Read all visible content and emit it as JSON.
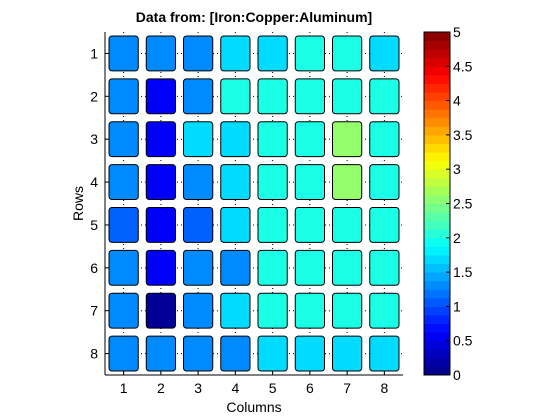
{
  "chart_data": {
    "type": "heatmap",
    "title": "Data from: [Iron:Copper:Aluminum]",
    "xlabel": "Columns",
    "ylabel": "Rows",
    "columns": [
      "1",
      "2",
      "3",
      "4",
      "5",
      "6",
      "7",
      "8"
    ],
    "rows": [
      "1",
      "2",
      "3",
      "4",
      "5",
      "6",
      "7",
      "8"
    ],
    "values": [
      [
        1.3,
        1.3,
        1.3,
        1.7,
        1.7,
        2.0,
        2.0,
        1.7
      ],
      [
        1.3,
        0.6,
        1.3,
        2.0,
        2.0,
        2.0,
        2.0,
        2.0
      ],
      [
        1.3,
        0.6,
        1.7,
        1.7,
        2.0,
        2.0,
        2.6,
        2.0
      ],
      [
        1.3,
        0.6,
        1.3,
        1.7,
        2.0,
        2.0,
        2.6,
        2.0
      ],
      [
        1.1,
        0.6,
        1.1,
        1.7,
        2.0,
        2.0,
        2.0,
        2.0
      ],
      [
        1.3,
        0.6,
        1.3,
        1.3,
        2.0,
        2.0,
        2.0,
        2.0
      ],
      [
        1.3,
        0.1,
        1.3,
        1.7,
        2.0,
        2.0,
        2.0,
        2.0
      ],
      [
        1.3,
        1.3,
        1.3,
        1.3,
        1.7,
        1.7,
        1.7,
        1.7
      ]
    ],
    "colorbar": {
      "range": [
        0,
        5
      ],
      "ticks": [
        "0",
        "0.5",
        "1",
        "1.5",
        "2",
        "2.5",
        "3",
        "3.5",
        "4",
        "4.5",
        "5"
      ],
      "levels": 40
    },
    "grid": true
  }
}
